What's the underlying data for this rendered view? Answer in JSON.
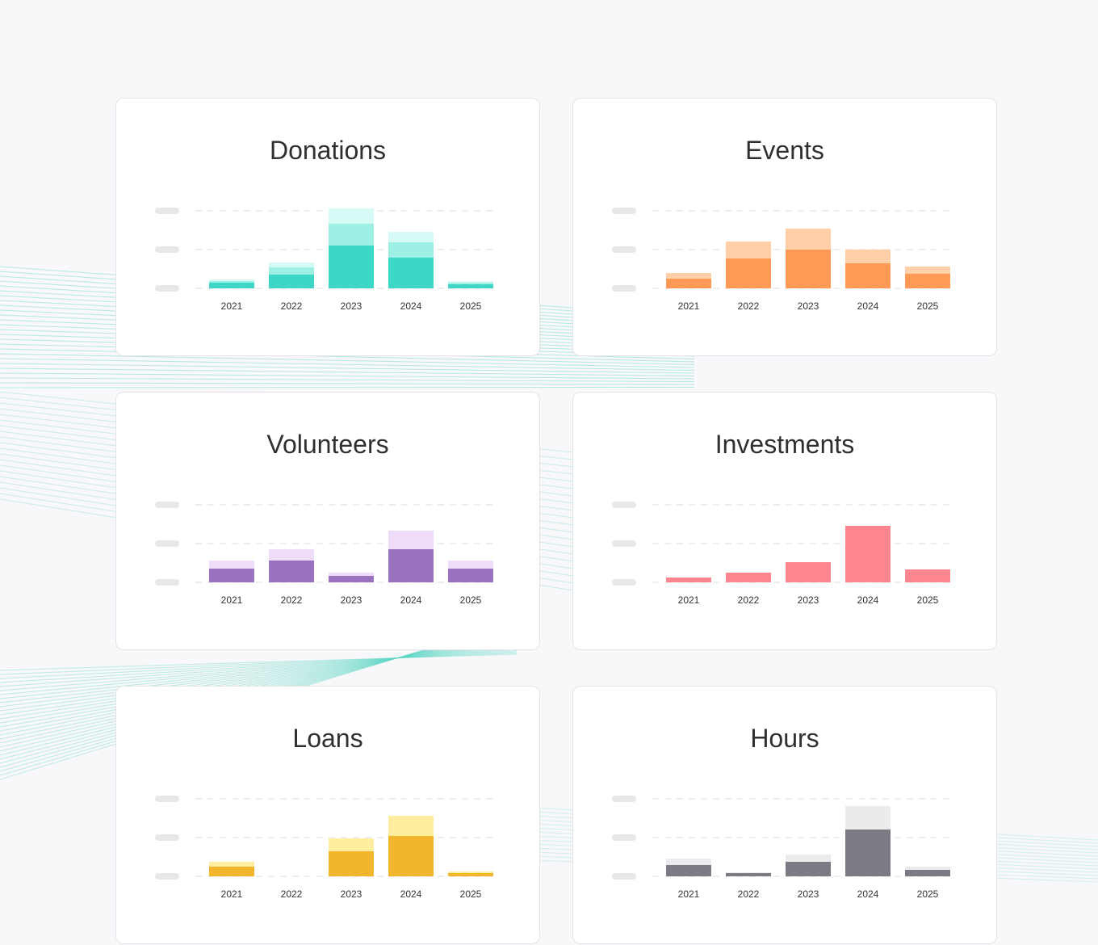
{
  "colors": {
    "background": "#f8f7f9",
    "card": "#ffffff",
    "grid": "#e4e4e7",
    "placeholder": "#e8e8ea",
    "decor": "#5ed6c6"
  },
  "chart_data": [
    {
      "type": "bar",
      "stacked": true,
      "title": "Donations",
      "categories": [
        "2021",
        "2022",
        "2023",
        "2024",
        "2025"
      ],
      "ylim": [
        0,
        100
      ],
      "grid": true,
      "legend": "none",
      "colors": [
        "#3dd8c5",
        "#9ef0e4",
        "#d6faf6"
      ],
      "series": [
        {
          "values": [
            7,
            17,
            53,
            38,
            5
          ]
        },
        {
          "values": [
            2,
            9,
            27,
            19,
            2
          ]
        },
        {
          "values": [
            2,
            6,
            19,
            13,
            2
          ]
        }
      ]
    },
    {
      "type": "bar",
      "stacked": true,
      "title": "Events",
      "categories": [
        "2021",
        "2022",
        "2023",
        "2024",
        "2025"
      ],
      "ylim": [
        0,
        100
      ],
      "grid": true,
      "legend": "none",
      "colors": [
        "#ff9a56",
        "#ffcfa8"
      ],
      "series": [
        {
          "values": [
            12,
            37,
            48,
            31,
            18
          ]
        },
        {
          "values": [
            7,
            21,
            26,
            17,
            9
          ]
        }
      ]
    },
    {
      "type": "bar",
      "stacked": true,
      "title": "Volunteers",
      "categories": [
        "2021",
        "2022",
        "2023",
        "2024",
        "2025"
      ],
      "ylim": [
        0,
        100
      ],
      "grid": true,
      "legend": "none",
      "colors": [
        "#9b72c0",
        "#efdcf8"
      ],
      "series": [
        {
          "values": [
            17,
            27,
            8,
            41,
            17
          ]
        },
        {
          "values": [
            10,
            14,
            4,
            23,
            10
          ]
        }
      ]
    },
    {
      "type": "bar",
      "stacked": false,
      "title": "Investments",
      "categories": [
        "2021",
        "2022",
        "2023",
        "2024",
        "2025"
      ],
      "ylim": [
        0,
        100
      ],
      "grid": true,
      "legend": "none",
      "colors": [
        "#ff8690"
      ],
      "series": [
        {
          "values": [
            6,
            12,
            25,
            70,
            16
          ]
        }
      ]
    },
    {
      "type": "bar",
      "stacked": true,
      "title": "Loans",
      "categories": [
        "2021",
        "2022",
        "2023",
        "2024",
        "2025"
      ],
      "ylim": [
        0,
        100
      ],
      "grid": true,
      "legend": "none",
      "colors": [
        "#f2b52e",
        "#ffeea0"
      ],
      "series": [
        {
          "values": [
            12,
            0,
            31,
            50,
            4
          ]
        },
        {
          "values": [
            6,
            0,
            16,
            25,
            2
          ]
        }
      ]
    },
    {
      "type": "bar",
      "stacked": true,
      "title": "Hours",
      "categories": [
        "2021",
        "2022",
        "2023",
        "2024",
        "2025"
      ],
      "ylim": [
        0,
        100
      ],
      "grid": true,
      "legend": "none",
      "colors": [
        "#7b7b83",
        "#ebeaec"
      ],
      "series": [
        {
          "values": [
            14,
            4,
            18,
            58,
            8
          ]
        },
        {
          "values": [
            8,
            1,
            9,
            29,
            4
          ]
        }
      ]
    }
  ]
}
